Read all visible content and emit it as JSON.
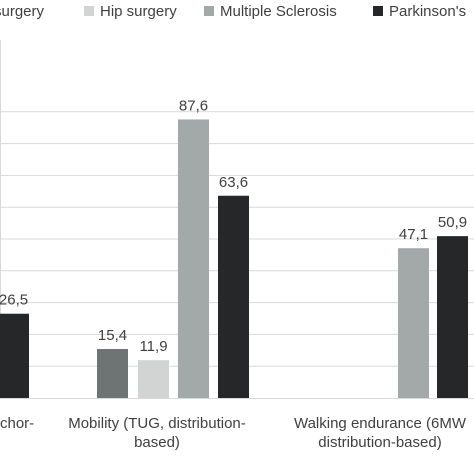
{
  "chart_data": {
    "type": "bar",
    "title": "",
    "xlabel": "",
    "ylabel": "",
    "ylim": [
      0,
      100
    ],
    "grid": true,
    "legend_position": "top",
    "categories": [
      "...chor-",
      "Mobility (TUG, distribution-based)",
      "Walking endurance (6MW... distribution-based)"
    ],
    "category_label_lines": [
      [
        "chor-"
      ],
      [
        "Mobility (TUG, distribution-",
        "based)"
      ],
      [
        "Walking endurance (6MW",
        "distribution-based)"
      ]
    ],
    "series": [
      {
        "name": "...surgery",
        "color": "#6e7374",
        "values": [
          null,
          15.4,
          null
        ]
      },
      {
        "name": "Hip surgery",
        "color": "#d2d4d4",
        "values": [
          null,
          11.9,
          null
        ]
      },
      {
        "name": "Multiple Sclerosis",
        "color": "#a3a8a8",
        "values": [
          null,
          87.6,
          47.1
        ]
      },
      {
        "name": "Parkinson's...",
        "color": "#252728",
        "values": [
          26.5,
          63.6,
          50.9
        ]
      }
    ],
    "data_labels": [
      [
        null,
        "15,4",
        null
      ],
      [
        null,
        "11,9",
        null
      ],
      [
        null,
        "87,6",
        "47,1"
      ],
      [
        "26,5",
        "63,6",
        "50,9"
      ]
    ]
  },
  "legend": {
    "items": [
      {
        "label": "surgery",
        "color": "#6e7374"
      },
      {
        "label": "Hip surgery",
        "color": "#d2d4d4"
      },
      {
        "label": "Multiple Sclerosis",
        "color": "#a3a8a8"
      },
      {
        "label": "Parkinson's",
        "color": "#252728"
      }
    ]
  }
}
